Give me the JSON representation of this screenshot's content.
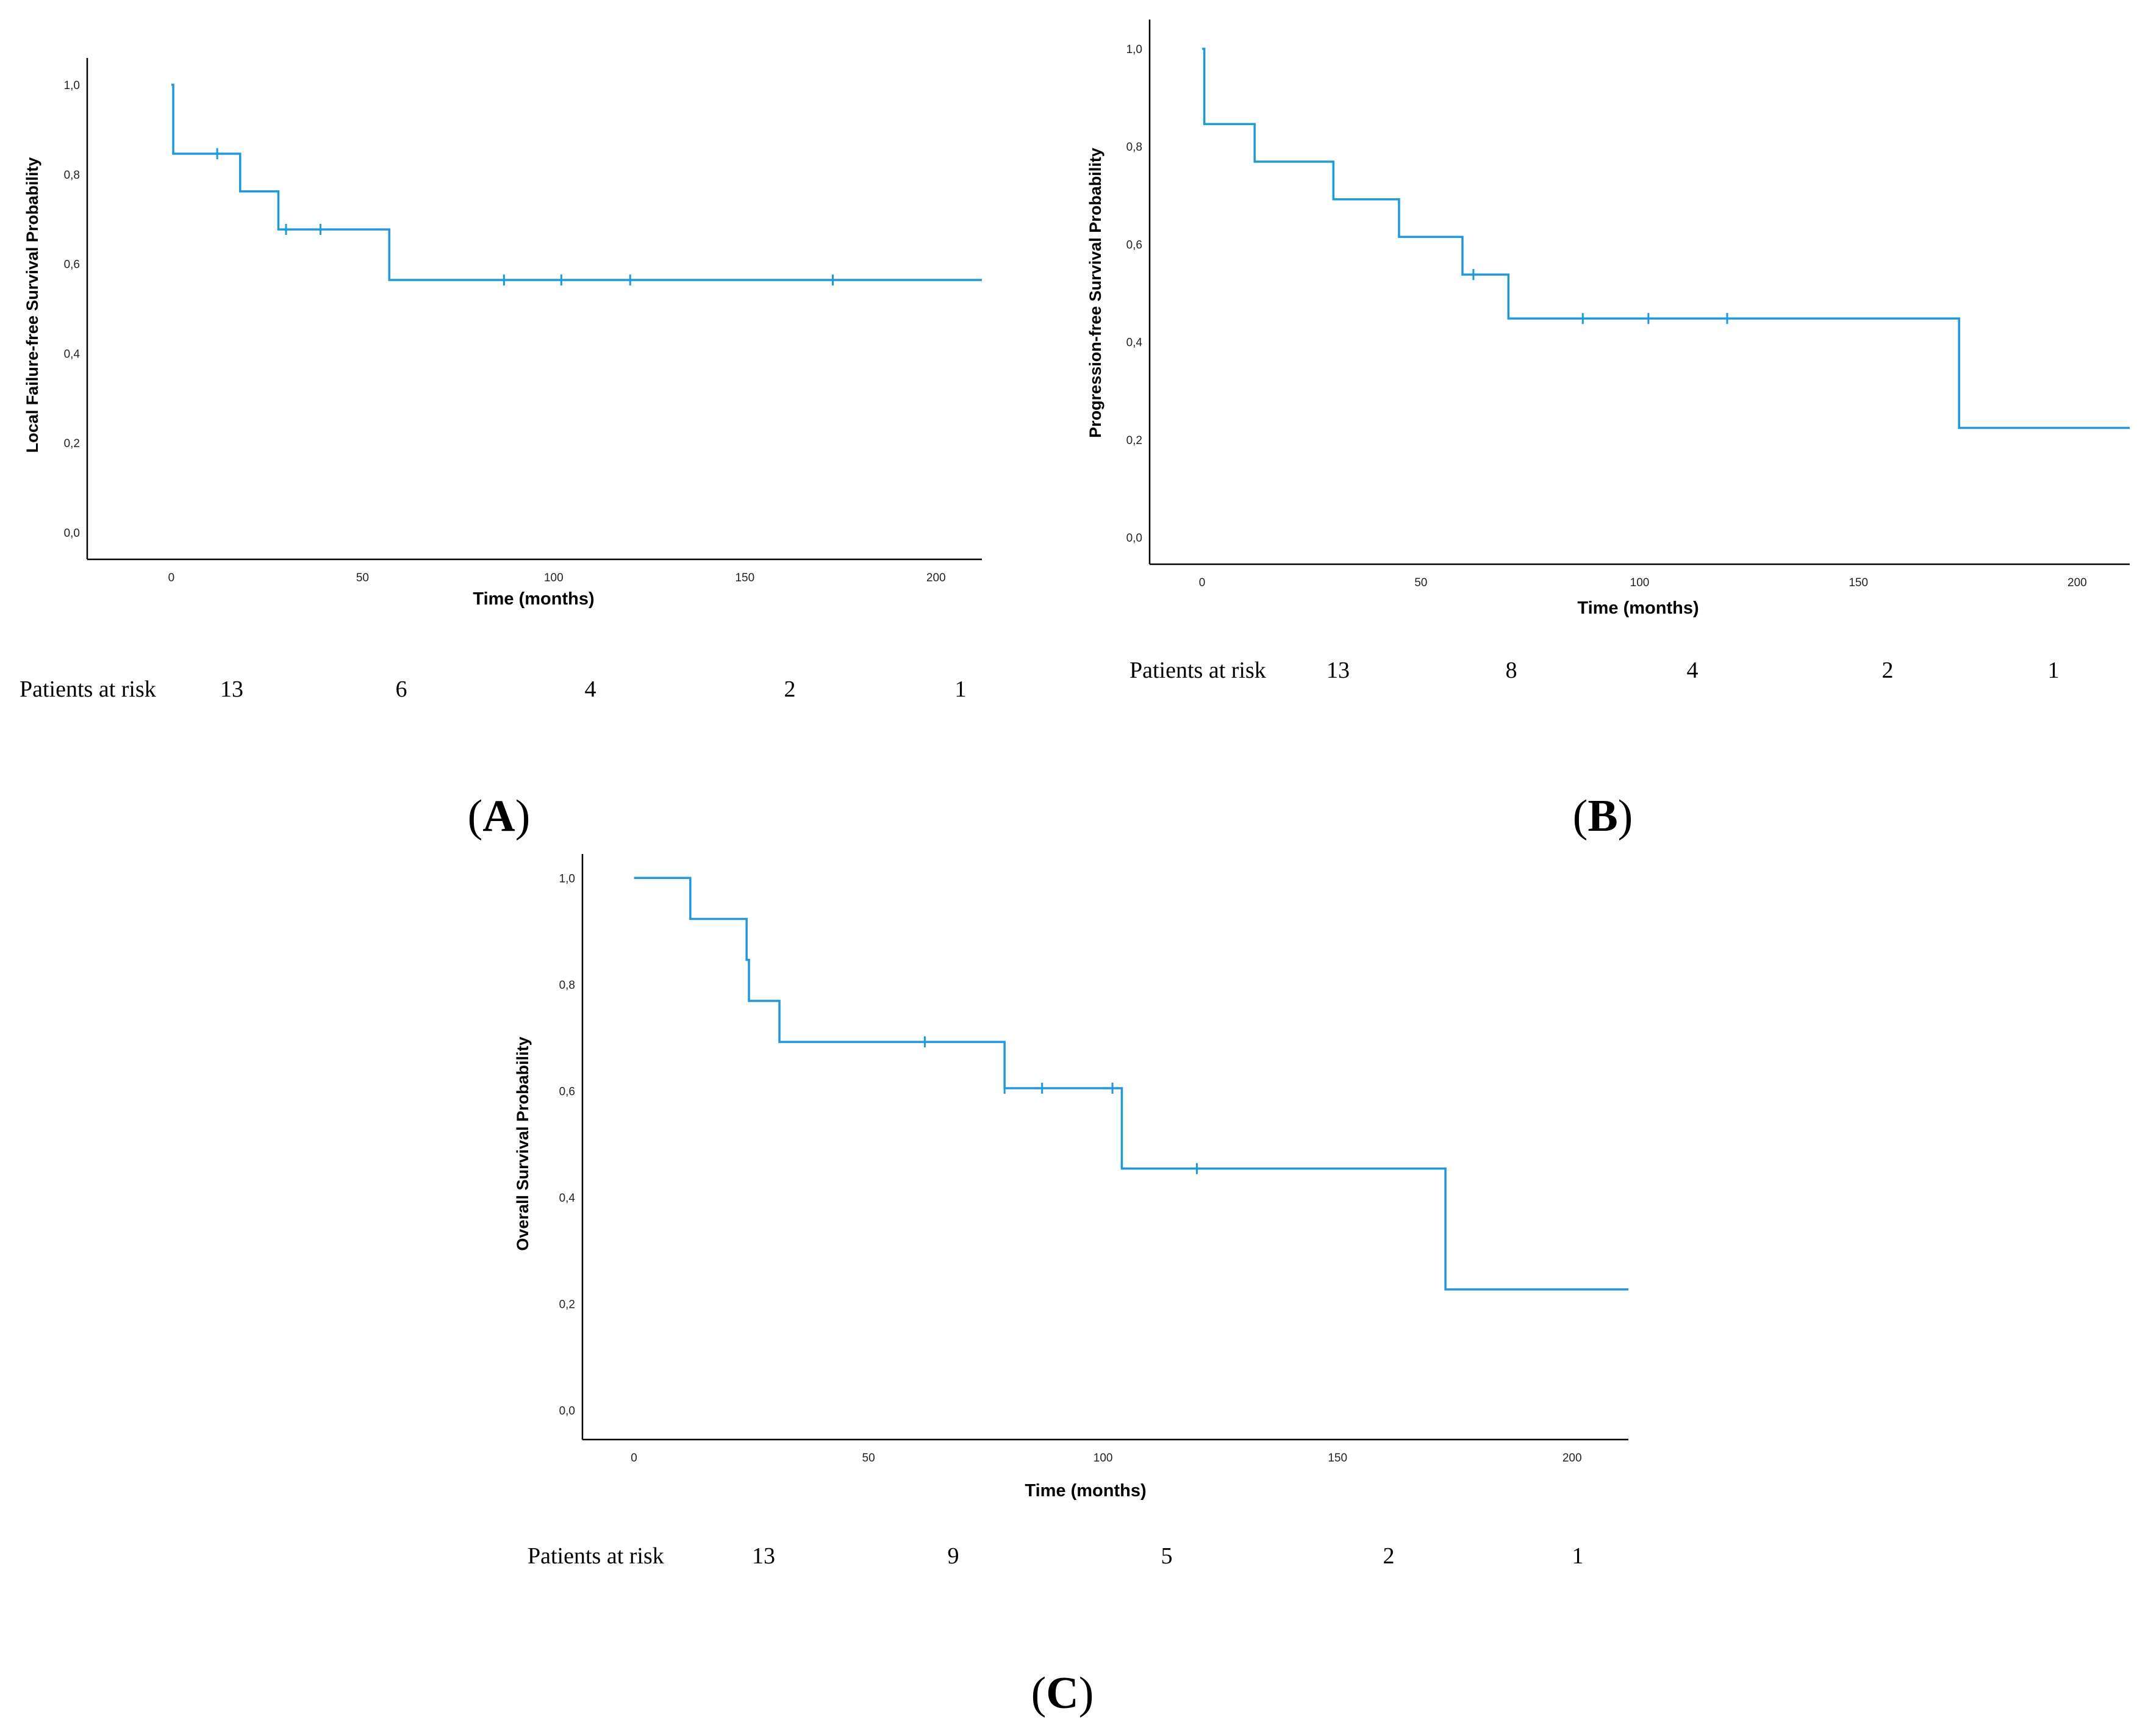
{
  "figure": {
    "curve_color": "#1a9ae0"
  },
  "chart_data": [
    {
      "type": "line",
      "subtype": "kaplan-meier",
      "panel_label": "A",
      "xlabel": "Time (months)",
      "ylabel": "Local Failure-free Survival Probability",
      "xlim": [
        -22,
        212
      ],
      "ylim": [
        -0.06,
        1.06
      ],
      "x_ticks": [
        0,
        50,
        100,
        150,
        200
      ],
      "x_tick_labels": [
        "0",
        "50",
        "100",
        "150",
        "200"
      ],
      "y_ticks": [
        0,
        0.2,
        0.4,
        0.6,
        0.8,
        1.0
      ],
      "y_tick_labels": [
        "0,0",
        "0,2",
        "0,4",
        "0,6",
        "0,8",
        "1,0"
      ],
      "steps": [
        [
          0,
          1.0
        ],
        [
          0.5,
          0.846
        ],
        [
          18,
          0.762
        ],
        [
          28,
          0.677
        ],
        [
          57,
          0.564
        ]
      ],
      "x_end": 212,
      "censored": [
        [
          12,
          0.846
        ],
        [
          30,
          0.677
        ],
        [
          39,
          0.677
        ],
        [
          87,
          0.564
        ],
        [
          102,
          0.564
        ],
        [
          120,
          0.564
        ],
        [
          173,
          0.564
        ]
      ],
      "risk_label": "Patients at risk",
      "risk_values": [
        "13",
        "6",
        "4",
        "2",
        "1"
      ]
    },
    {
      "type": "line",
      "subtype": "kaplan-meier",
      "panel_label": "B",
      "xlabel": "Time (months)",
      "ylabel": "Progression-free Survival Probability",
      "xlim": [
        -12,
        212
      ],
      "ylim": [
        -0.055,
        1.06
      ],
      "x_ticks": [
        0,
        50,
        100,
        150,
        200
      ],
      "x_tick_labels": [
        "0",
        "50",
        "100",
        "150",
        "200"
      ],
      "y_ticks": [
        0,
        0.2,
        0.4,
        0.6,
        0.8,
        1.0
      ],
      "y_tick_labels": [
        "0,0",
        "0,2",
        "0,4",
        "0,6",
        "0,8",
        "1,0"
      ],
      "steps": [
        [
          0,
          1.0
        ],
        [
          0.5,
          0.846
        ],
        [
          12,
          0.769
        ],
        [
          30,
          0.692
        ],
        [
          45,
          0.615
        ],
        [
          59.5,
          0.538
        ],
        [
          70,
          0.448
        ],
        [
          173,
          0.224
        ]
      ],
      "x_end": 212,
      "censored": [
        [
          62,
          0.538
        ],
        [
          87,
          0.448
        ],
        [
          102,
          0.448
        ],
        [
          120,
          0.448
        ]
      ],
      "risk_label": "Patients at risk",
      "risk_values": [
        "13",
        "8",
        "4",
        "2",
        "1"
      ]
    },
    {
      "type": "line",
      "subtype": "kaplan-meier",
      "panel_label": "C",
      "xlabel": "Time (months)",
      "ylabel": "Overall Survival Probability",
      "xlim": [
        -11,
        212
      ],
      "ylim": [
        -0.055,
        1.045
      ],
      "x_ticks": [
        0,
        50,
        100,
        150,
        200
      ],
      "x_tick_labels": [
        "0",
        "50",
        "100",
        "150",
        "200"
      ],
      "y_ticks": [
        0,
        0.2,
        0.4,
        0.6,
        0.8,
        1.0
      ],
      "y_tick_labels": [
        "0,0",
        "0,2",
        "0,4",
        "0,6",
        "0,8",
        "1,0"
      ],
      "steps": [
        [
          0,
          1.0
        ],
        [
          12,
          0.923
        ],
        [
          24,
          0.846
        ],
        [
          24.5,
          0.769
        ],
        [
          31,
          0.692
        ],
        [
          79,
          0.605
        ],
        [
          104,
          0.454
        ],
        [
          173,
          0.227
        ]
      ],
      "x_end": 212,
      "censored": [
        [
          62,
          0.692
        ],
        [
          79,
          0.605
        ],
        [
          87,
          0.605
        ],
        [
          102,
          0.605
        ],
        [
          120,
          0.454
        ]
      ],
      "risk_label": "Patients at risk",
      "risk_values": [
        "13",
        "9",
        "5",
        "2",
        "1"
      ]
    }
  ]
}
